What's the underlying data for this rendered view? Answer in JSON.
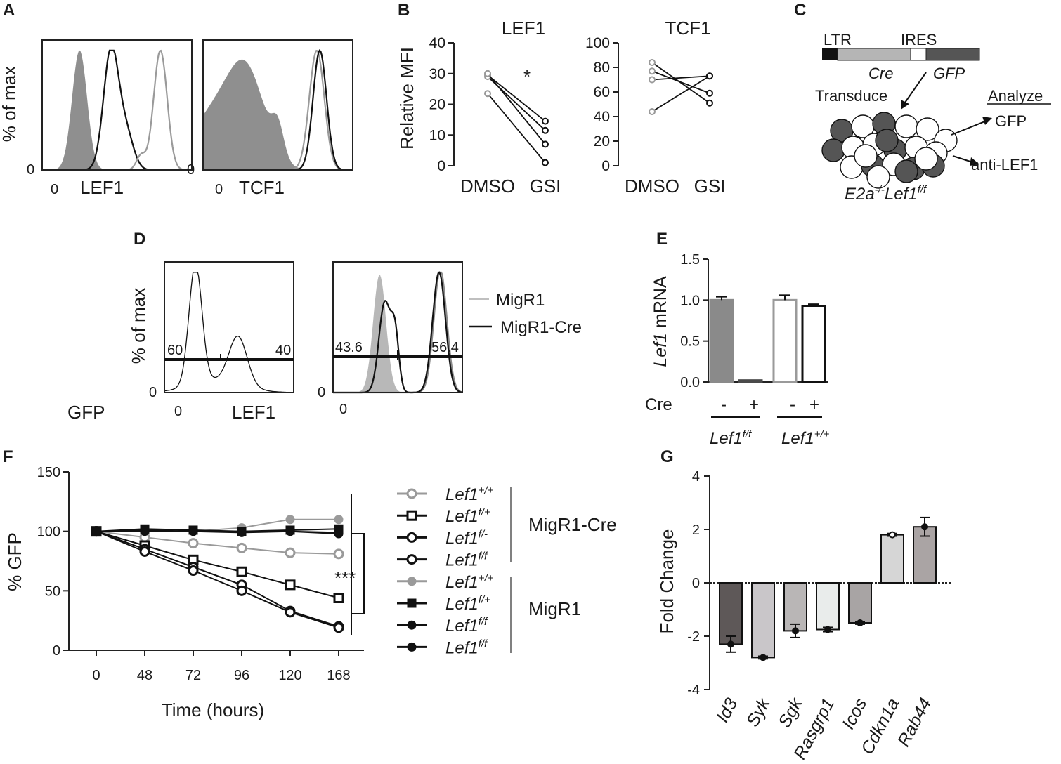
{
  "panels": {
    "A": {
      "letter": "A",
      "ylabel": "% of max",
      "zero_y": "0",
      "h1_zero_x": "0",
      "h1_xlabel": "LEF1",
      "h2_zero_y": "0",
      "h2_zero_x": "0",
      "h2_xlabel": "TCF1"
    },
    "B": {
      "letter": "B",
      "ylabel": "Relative MFI",
      "signif": "*"
    },
    "C": {
      "letter": "C",
      "ltr": "LTR",
      "ires": "IRES",
      "cre": "Cre",
      "gfp_gene": "GFP",
      "transduce": "Transduce",
      "analyze": "Analyze",
      "gfp_out": "GFP",
      "anti_lef1": "anti-LEF1",
      "genotype": "E2a",
      "genotype_sup1": "-/-",
      "genotype_mid": "Lef1",
      "genotype_sup2": "f/f"
    },
    "D": {
      "letter": "D",
      "ylabel": "% of max",
      "gfp": "GFP",
      "h1_zero_y": "0",
      "h1_zero_x": "0",
      "h1_xlabel": "LEF1",
      "h1_left_pct": "60",
      "h1_right_pct": "40",
      "h2_zero_y": "0",
      "h2_zero_x": "0",
      "h2_left_pct": "43.6",
      "h2_right_pct": "56.4",
      "legend": [
        "MigR1",
        "MigR1-Cre"
      ]
    },
    "E": {
      "letter": "E",
      "cre_label": "Cre",
      "minus": "-",
      "plus": "+",
      "group1_base": "Lef1",
      "group1_sup": "f/f",
      "group2_base": "Lef1",
      "group2_sup": "+/+"
    },
    "F": {
      "letter": "F",
      "signif": "***",
      "group_cre": "MigR1-Cre",
      "group_migr1": "MigR1"
    },
    "G": {
      "letter": "G"
    }
  },
  "chart_data": [
    {
      "panel": "B-left",
      "type": "scatter",
      "title": "LEF1",
      "xlabel": "",
      "ylabel": "Relative MFI",
      "categories": [
        "DMSO",
        "GSI"
      ],
      "ylim": [
        0,
        40
      ],
      "yticks": [
        "0",
        "10",
        "20",
        "30",
        "40"
      ],
      "pairs": [
        [
          29.5,
          14.5
        ],
        [
          29.0,
          11.5
        ],
        [
          30.0,
          7.0
        ],
        [
          23.5,
          1.0
        ]
      ]
    },
    {
      "panel": "B-right",
      "type": "scatter",
      "title": "TCF1",
      "xlabel": "",
      "ylabel": "",
      "categories": [
        "DMSO",
        "GSI"
      ],
      "ylim": [
        0,
        100
      ],
      "yticks": [
        "0",
        "20",
        "40",
        "60",
        "80",
        "100"
      ],
      "pairs": [
        [
          84,
          51
        ],
        [
          77,
          59
        ],
        [
          70,
          73
        ],
        [
          44,
          73
        ]
      ]
    },
    {
      "panel": "E",
      "type": "bar",
      "ylabel_base": "Lef1",
      "ylabel_rest": " mRNA",
      "ylim": [
        0,
        1.5
      ],
      "yticks": [
        "0.0",
        "0.5",
        "1.0",
        "1.5"
      ],
      "categories": [
        "-",
        "+",
        "-",
        "+"
      ],
      "values": [
        1.0,
        0.02,
        1.0,
        0.93
      ],
      "errors": [
        0.04,
        0.0,
        0.06,
        0.02
      ],
      "colors": [
        "#8a8a8a",
        "#4a4a4a",
        "#ffffff",
        "#ffffff"
      ],
      "edges": [
        "#8a8a8a",
        "#4a4a4a",
        "#9a9a9a",
        "#111111"
      ]
    },
    {
      "panel": "F",
      "type": "line",
      "xlabel": "Time (hours)",
      "ylabel": "% GFP",
      "x": [
        "0",
        "48",
        "72",
        "96",
        "120",
        "168"
      ],
      "ylim": [
        0,
        150
      ],
      "yticks": [
        "0",
        "50",
        "100",
        "150"
      ],
      "series": [
        {
          "name_base": "Lef1",
          "name_sup": "+/+",
          "group": "MigR1-Cre",
          "marker": "open-circle",
          "color": "#9a9a9a",
          "values": [
            100,
            95,
            90,
            86,
            82,
            81
          ]
        },
        {
          "name_base": "Lef1",
          "name_sup": "f/+",
          "group": "MigR1-Cre",
          "marker": "open-square",
          "color": "#111111",
          "values": [
            100,
            88,
            76,
            66,
            55,
            44
          ]
        },
        {
          "name_base": "Lef1",
          "name_sup": "f/-",
          "group": "MigR1-Cre",
          "marker": "open-circle",
          "color": "#111111",
          "values": [
            100,
            85,
            70,
            55,
            33,
            20
          ]
        },
        {
          "name_base": "Lef1",
          "name_sup": "f/f",
          "group": "MigR1-Cre",
          "marker": "open-circle",
          "color": "#111111",
          "values": [
            100,
            83,
            67,
            50,
            32,
            19
          ]
        },
        {
          "name_base": "Lef1",
          "name_sup": "+/+",
          "group": "MigR1",
          "marker": "filled-circle",
          "color": "#9a9a9a",
          "values": [
            100,
            100,
            100,
            103,
            110,
            110
          ]
        },
        {
          "name_base": "Lef1",
          "name_sup": "f/+",
          "group": "MigR1",
          "marker": "filled-square",
          "color": "#111111",
          "values": [
            100,
            102,
            101,
            100,
            101,
            102
          ]
        },
        {
          "name_base": "Lef1",
          "name_sup": "f/f",
          "group": "MigR1",
          "marker": "filled-circle",
          "color": "#111111",
          "values": [
            100,
            100,
            100,
            99,
            100,
            98
          ]
        },
        {
          "name_base": "Lef1",
          "name_sup": "f/f",
          "group": "MigR1",
          "marker": "filled-circle",
          "color": "#111111",
          "values": [
            100,
            101,
            100,
            100,
            100,
            99
          ]
        }
      ]
    },
    {
      "panel": "G",
      "type": "bar",
      "ylabel": "Fold Change",
      "ylim": [
        -4,
        4
      ],
      "yticks": [
        "-4",
        "-2",
        "0",
        "2",
        "4"
      ],
      "categories": [
        "Id3",
        "Syk",
        "Sgk",
        "Rasgrp1",
        "Icos",
        "Cdkn1a",
        "Rab44"
      ],
      "values": [
        -2.3,
        -2.8,
        -1.8,
        -1.75,
        -1.5,
        1.8,
        2.1
      ],
      "errors": [
        0.3,
        0.05,
        0.25,
        0.08,
        0.05,
        0.05,
        0.35
      ],
      "colors": [
        "#5e5858",
        "#c9c6c9",
        "#b9b6b6",
        "#e9eceb",
        "#a8a4a4",
        "#d6d6d6",
        "#aaa4a4"
      ]
    }
  ],
  "histograms": {
    "A1": [
      {
        "name": "isotype",
        "fill": "#8f8f8f",
        "stroke": "#8f8f8f",
        "width": 0,
        "peaks": [
          [
            0.25,
            0.05,
            1.0
          ]
        ]
      },
      {
        "name": "lef1-low",
        "fill": "none",
        "stroke": "#111111",
        "width": 2.2,
        "peaks": [
          [
            0.46,
            0.05,
            1.0
          ],
          [
            0.56,
            0.05,
            0.3
          ]
        ]
      },
      {
        "name": "lef1-high",
        "fill": "none",
        "stroke": "#9a9a9a",
        "width": 2.2,
        "peaks": [
          [
            0.66,
            0.03,
            0.12
          ],
          [
            0.79,
            0.045,
            1.0
          ]
        ]
      }
    ],
    "A2": [
      {
        "name": "isotype",
        "fill": "#8f8f8f",
        "stroke": "#8f8f8f",
        "width": 0,
        "peaks": [
          [
            0.1,
            0.18,
            0.5
          ],
          [
            0.3,
            0.12,
            0.62
          ],
          [
            0.5,
            0.04,
            0.25
          ]
        ]
      },
      {
        "name": "tcf1-a",
        "fill": "none",
        "stroke": "#9a9a9a",
        "width": 2.2,
        "peaks": [
          [
            0.76,
            0.05,
            1.0
          ]
        ]
      },
      {
        "name": "tcf1-b",
        "fill": "none",
        "stroke": "#111111",
        "width": 2.2,
        "peaks": [
          [
            0.78,
            0.045,
            1.0
          ]
        ]
      }
    ],
    "D1": [
      {
        "name": "gfp",
        "fill": "none",
        "stroke": "#111111",
        "width": 1.3,
        "peaks": [
          [
            0.24,
            0.05,
            1.0
          ],
          [
            0.57,
            0.07,
            0.4
          ],
          [
            0.4,
            0.2,
            0.1
          ]
        ]
      }
    ],
    "D2": [
      {
        "name": "migr1-filled",
        "fill": "#b8b8b8",
        "stroke": "#b8b8b8",
        "width": 0,
        "peaks": [
          [
            0.36,
            0.05,
            0.98
          ]
        ]
      },
      {
        "name": "migr1",
        "fill": "none",
        "stroke": "#8a8a8a",
        "width": 2.2,
        "peaks": [
          [
            0.83,
            0.05,
            1.02
          ]
        ]
      },
      {
        "name": "migr1-cre",
        "fill": "none",
        "stroke": "#111111",
        "width": 2.2,
        "peaks": [
          [
            0.4,
            0.045,
            0.75
          ],
          [
            0.48,
            0.03,
            0.45
          ],
          [
            0.82,
            0.05,
            1.0
          ]
        ]
      }
    ]
  },
  "colors": {
    "ink": "#1a1a1a",
    "grey": "#9a9a9a",
    "dark_cell": "#555555"
  }
}
